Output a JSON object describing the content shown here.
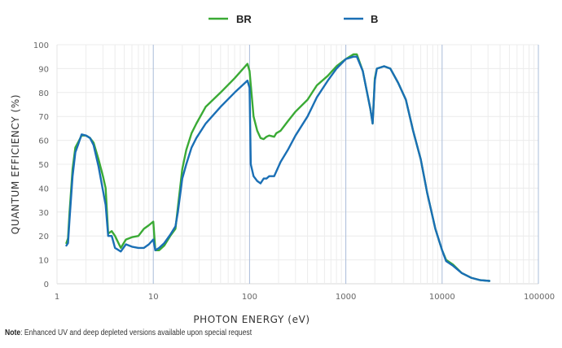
{
  "chart_data": {
    "type": "line",
    "title": "",
    "xlabel": "PHOTON ENERGY (eV)",
    "ylabel": "QUANTUM EFFICIENCY (%)",
    "xscale": "log",
    "xlim": [
      1,
      100000
    ],
    "ylim": [
      0,
      100
    ],
    "grid": true,
    "legend_position": "top-center",
    "x_ticks": [
      1,
      10,
      100,
      1000,
      10000,
      100000
    ],
    "x_tick_labels": [
      "1",
      "10",
      "100",
      "1000",
      "10000",
      "100000"
    ],
    "y_ticks": [
      0,
      10,
      20,
      30,
      40,
      50,
      60,
      70,
      80,
      90,
      100
    ],
    "y_tick_labels": [
      "0",
      "10",
      "20",
      "30",
      "40",
      "50",
      "60",
      "70",
      "80",
      "90",
      "100"
    ],
    "series": [
      {
        "name": "BR",
        "color": "#3aaa35",
        "x": [
          1.25,
          1.3,
          1.35,
          1.45,
          1.55,
          1.65,
          1.8,
          2.0,
          2.2,
          2.4,
          2.7,
          3.0,
          3.2,
          3.4,
          3.7,
          4.0,
          4.6,
          5.2,
          6,
          7,
          8,
          9,
          10,
          10.5,
          11.5,
          13,
          15,
          17,
          18,
          20,
          22,
          25,
          28,
          35,
          50,
          70,
          95,
          100,
          110,
          120,
          130,
          140,
          150,
          160,
          180,
          190,
          210,
          250,
          300,
          400,
          500,
          650,
          800,
          1000,
          1200,
          1300,
          1500,
          1800,
          1900,
          2000,
          2100,
          2500,
          2900,
          3500,
          4200,
          5000,
          6000,
          7000,
          8500,
          10000,
          11000,
          13000,
          16000,
          20000,
          25000,
          31000
        ],
        "y": [
          17,
          19,
          30,
          48,
          57,
          59,
          62,
          62,
          61,
          59,
          52,
          45,
          40,
          21,
          22,
          20,
          15,
          18.5,
          19.5,
          20,
          23,
          24.5,
          26,
          14,
          14,
          16,
          20,
          23,
          32,
          48,
          56,
          63,
          67,
          74,
          80,
          86,
          92,
          89,
          70,
          64,
          61,
          60.5,
          61.5,
          62,
          61.5,
          63,
          64,
          68,
          72,
          77,
          83,
          87,
          91,
          94,
          96,
          96,
          89,
          73,
          67,
          86,
          90,
          91,
          90,
          84,
          77,
          64,
          52,
          38,
          23,
          14,
          10,
          8,
          4.5,
          2.5,
          1.5,
          1.2
        ]
      },
      {
        "name": "B",
        "color": "#1a6fb5",
        "x": [
          1.25,
          1.3,
          1.35,
          1.45,
          1.55,
          1.65,
          1.8,
          2.0,
          2.2,
          2.4,
          2.7,
          3.0,
          3.2,
          3.4,
          3.7,
          4.0,
          4.6,
          5.2,
          6,
          7,
          8,
          9,
          10,
          10.5,
          11.5,
          13,
          15,
          17,
          18,
          20,
          22,
          25,
          28,
          35,
          50,
          70,
          95,
          100,
          103,
          110,
          120,
          130,
          140,
          150,
          160,
          180,
          190,
          210,
          250,
          300,
          400,
          500,
          650,
          800,
          1000,
          1200,
          1300,
          1500,
          1800,
          1900,
          2000,
          2100,
          2500,
          2900,
          3500,
          4200,
          5000,
          6000,
          7000,
          8500,
          10000,
          11000,
          13000,
          16000,
          20000,
          25000,
          31000
        ],
        "y": [
          16,
          17,
          27,
          45,
          55,
          58,
          62.5,
          62,
          61,
          58,
          49,
          39,
          33,
          20,
          20,
          15,
          13.5,
          16.5,
          15.5,
          15,
          15,
          16.5,
          18.5,
          14,
          15,
          17,
          20.5,
          24,
          30,
          44,
          50,
          57,
          61,
          67,
          74,
          80,
          85,
          82,
          50,
          45,
          43,
          42,
          44,
          44,
          45,
          45,
          47,
          51,
          56,
          62,
          70,
          78,
          85,
          90,
          94,
          95,
          95,
          89,
          73,
          67,
          85,
          90,
          91,
          90,
          84,
          77,
          64,
          52,
          38,
          23,
          14,
          9.5,
          7.5,
          4.5,
          2.5,
          1.5,
          1.2
        ]
      }
    ]
  },
  "note": {
    "label": "Note",
    "text": ": Enhanced UV and deep depleted versions available upon special request"
  }
}
